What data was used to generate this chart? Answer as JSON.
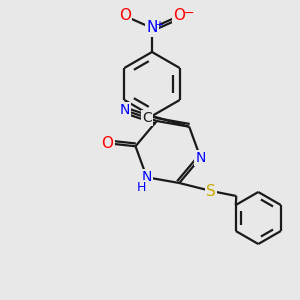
{
  "background_color": "#e8e8e8",
  "bond_color": "#1a1a1a",
  "atom_colors": {
    "N": "#0000ff",
    "O": "#ff0000",
    "S": "#ccaa00",
    "C": "#1a1a1a",
    "H": "#0000ff"
  },
  "figsize": [
    3.0,
    3.0
  ],
  "dpi": 100,
  "lw": 1.6,
  "fontsize": 10
}
